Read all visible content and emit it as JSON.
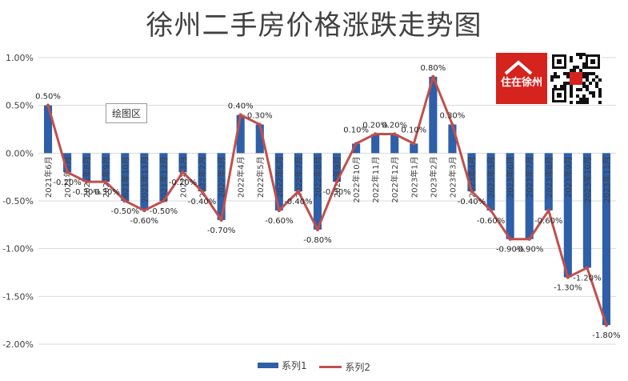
{
  "title": "徐州二手房价格涨跌走势图",
  "plot_area_label": "绘图区",
  "brand_text": "住在徐州",
  "colors": {
    "bar": "#2e5fa8",
    "line": "#c0504d",
    "grid": "#d9d9d9",
    "brand": "#d5231d"
  },
  "legend": {
    "bar": "系列1",
    "line": "系列2"
  },
  "chart_data": {
    "type": "bar",
    "categories": [
      "2021年6月",
      "2021年7月",
      "2021年8月",
      "2021年9月",
      "2021年10月",
      "2021年11月",
      "2021年12月",
      "2022年1月",
      "2022年2月",
      "2022年3月",
      "2022年4月",
      "2022年5月",
      "2022年6月",
      "2022年7月",
      "2022年8月",
      "2022年9月",
      "2022年10月",
      "2022年11月",
      "2022年12月",
      "2023年1月",
      "2023年2月",
      "2023年3月",
      "2023年4月",
      "2023年5月",
      "2023年6月",
      "2023年7月",
      "2023年8月",
      "2023年9月",
      "2023年10月",
      "2023年11月"
    ],
    "series": [
      {
        "name": "系列1",
        "type": "bar",
        "values": [
          0.5,
          -0.2,
          -0.3,
          -0.3,
          -0.5,
          -0.6,
          -0.5,
          -0.2,
          -0.4,
          -0.7,
          0.4,
          0.3,
          -0.6,
          -0.4,
          -0.8,
          -0.3,
          0.1,
          0.2,
          0.2,
          0.1,
          0.8,
          0.3,
          -0.4,
          -0.6,
          -0.9,
          -0.9,
          -0.6,
          -1.3,
          -1.2,
          -1.8
        ]
      },
      {
        "name": "系列2",
        "type": "line",
        "values": [
          0.5,
          -0.2,
          -0.3,
          -0.3,
          -0.5,
          -0.6,
          -0.5,
          -0.2,
          -0.4,
          -0.7,
          0.4,
          0.3,
          -0.6,
          -0.4,
          -0.8,
          -0.3,
          0.1,
          0.2,
          0.2,
          0.1,
          0.8,
          0.3,
          -0.4,
          -0.6,
          -0.9,
          -0.9,
          -0.6,
          -1.3,
          -1.2,
          -1.8
        ]
      }
    ],
    "data_labels": [
      "0.50%",
      "-0.20%",
      "-0.30%",
      "-0.30%",
      "-0.50%",
      "-0.60%",
      "-0.50%",
      "-0.20%",
      "-0.40%",
      "-0.70%",
      "0.40%",
      "0.30%",
      "-0.60%",
      "-0.40%",
      "-0.80%",
      "-0.30%",
      "0.10%",
      "0.20%",
      "0.20%",
      "0.10%",
      "0.80%",
      "0.30%",
      "-0.40%",
      "-0.60%",
      "-0.90%",
      "-0.90%",
      "-0.60%",
      "-1.30%",
      "-1.20%",
      "-1.80%"
    ],
    "yticks": [
      1.0,
      0.5,
      0.0,
      -0.5,
      -1.0,
      -1.5,
      -2.0
    ],
    "ytick_labels": [
      "1.00%",
      "0.50%",
      "0.00%",
      "-0.50%",
      "-1.00%",
      "-1.50%",
      "-2.00%"
    ],
    "ylim": [
      -2.0,
      1.0
    ],
    "grid": true,
    "legend_position": "bottom"
  }
}
